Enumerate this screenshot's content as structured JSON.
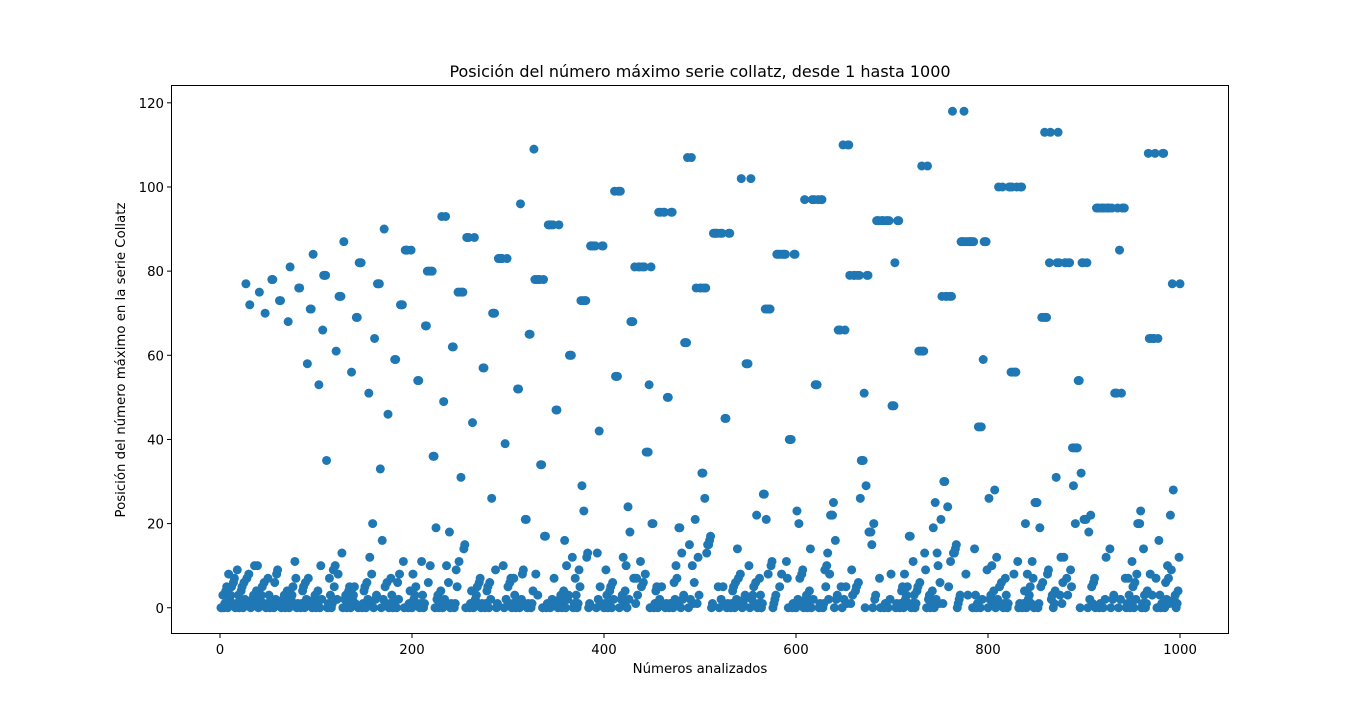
{
  "chart_data": {
    "type": "scatter",
    "title": "Posición del número máximo serie collatz, desde 1 hasta 1000",
    "xlabel": "Números analizados",
    "ylabel": "Posición del número máximo en la serie Collatz",
    "xlim": [
      -50,
      1050
    ],
    "ylim": [
      -6,
      124
    ],
    "xticks": [
      0,
      200,
      400,
      600,
      800,
      1000
    ],
    "yticks": [
      0,
      20,
      40,
      60,
      80,
      100,
      120
    ],
    "grid": false,
    "color": "#1f77b4",
    "x_range": [
      1,
      1000
    ],
    "generator": "collatz_max_position"
  }
}
